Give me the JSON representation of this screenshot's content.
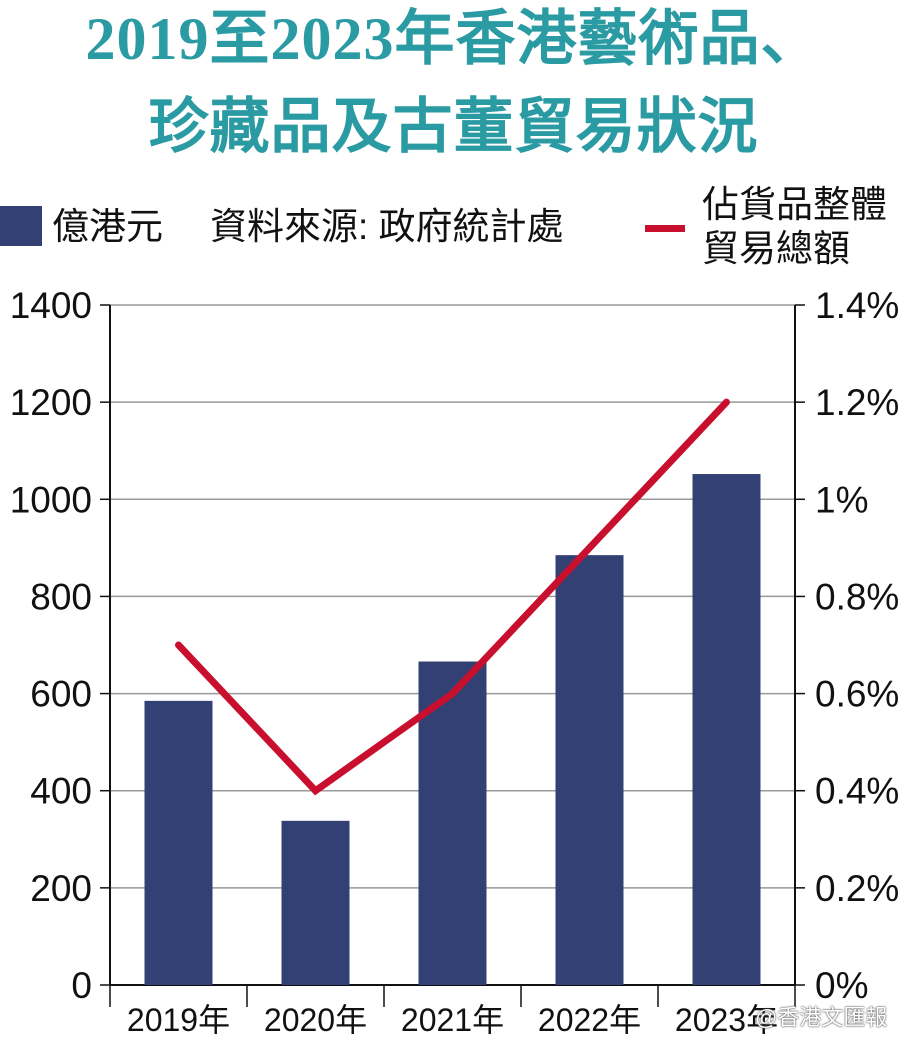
{
  "title_lines": [
    "2019至2023年香港藝術品、",
    "珍藏品及古董貿易狀況"
  ],
  "legend": {
    "bar_label": "億港元",
    "source": "資料來源: 政府統計處",
    "line_label_lines": [
      "佔貨品整體",
      "貿易總額"
    ]
  },
  "watermark": "@香港文匯報",
  "colors": {
    "title": "#2a9aa3",
    "bar": "#334073",
    "line": "#c8102e",
    "grid": "#999999"
  },
  "chart_data": {
    "type": "bar",
    "categories": [
      "2019年",
      "2020年",
      "2021年",
      "2022年",
      "2023年"
    ],
    "series": [
      {
        "name": "億港元",
        "type": "bar",
        "axis": "left",
        "values": [
          585,
          338,
          666,
          885,
          1052
        ]
      },
      {
        "name": "佔貨品整體貿易總額",
        "type": "line",
        "axis": "right",
        "values": [
          0.7,
          0.4,
          0.6,
          0.9,
          1.2
        ]
      }
    ],
    "y_left": {
      "lim": [
        0,
        1400
      ],
      "ticks": [
        "0",
        "200",
        "400",
        "600",
        "800",
        "1000",
        "1200",
        "1400"
      ]
    },
    "y_right": {
      "lim": [
        0,
        1.4
      ],
      "unit": "%",
      "ticks": [
        "0%",
        "0.2%",
        "0.4%",
        "0.6%",
        "0.8%",
        "1%",
        "1.2%",
        "1.4%"
      ]
    },
    "grid": true,
    "legend_position": "top"
  }
}
